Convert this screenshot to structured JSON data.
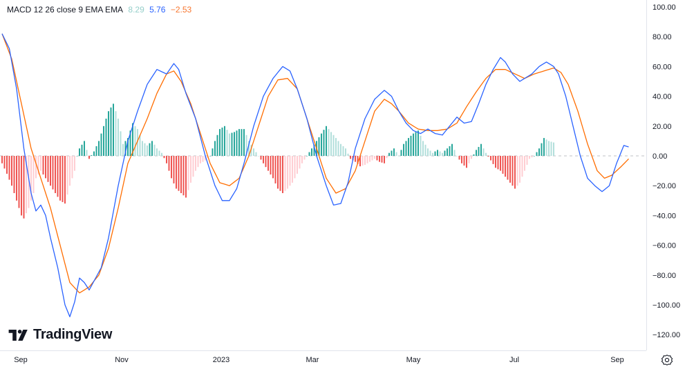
{
  "indicator": {
    "name": "MACD 12 26 close 9 EMA EMA",
    "value_hist": "8.29",
    "value_macd": "5.76",
    "value_signal": "−2.53"
  },
  "colors": {
    "macd": "#2962ff",
    "signal": "#ff6d00",
    "hist_up_strong": "#26a69a",
    "hist_up_weak": "#b2dfdb",
    "hist_down_strong": "#ef5350",
    "hist_down_weak": "#ffcdd2",
    "legend_hist": "#95cfca",
    "legend_macd": "#2962ff",
    "legend_signal": "#f7762f"
  },
  "branding": {
    "logo_text": "TradingView"
  },
  "icons": {
    "settings": "gear-icon",
    "logo": "tradingview-logo-icon"
  },
  "chart_data": {
    "type": "line",
    "y_ticks": [
      "100.00",
      "80.00",
      "60.00",
      "40.00",
      "20.00",
      "0.00",
      "−20.00",
      "−40.00",
      "−60.00",
      "−80.00",
      "−100.00",
      "−120.00"
    ],
    "x_ticks": [
      "Sep",
      "Nov",
      "2023",
      "Mar",
      "May",
      "Jul",
      "Sep"
    ],
    "ylim": [
      -128,
      102
    ],
    "macd_anchors": [
      [
        0,
        82
      ],
      [
        3,
        72
      ],
      [
        6,
        45
      ],
      [
        9,
        5
      ],
      [
        12,
        -25
      ],
      [
        14,
        -37
      ],
      [
        16,
        -33
      ],
      [
        18,
        -40
      ],
      [
        20,
        -55
      ],
      [
        23,
        -75
      ],
      [
        26,
        -100
      ],
      [
        28,
        -108
      ],
      [
        30,
        -98
      ],
      [
        32,
        -82
      ],
      [
        34,
        -85
      ],
      [
        36,
        -90
      ],
      [
        38,
        -84
      ],
      [
        41,
        -75
      ],
      [
        44,
        -55
      ],
      [
        48,
        -20
      ],
      [
        52,
        10
      ],
      [
        56,
        30
      ],
      [
        60,
        48
      ],
      [
        64,
        58
      ],
      [
        68,
        55
      ],
      [
        71,
        62
      ],
      [
        73,
        58
      ],
      [
        76,
        42
      ],
      [
        80,
        25
      ],
      [
        84,
        0
      ],
      [
        88,
        -20
      ],
      [
        91,
        -30
      ],
      [
        94,
        -30
      ],
      [
        97,
        -22
      ],
      [
        100,
        -5
      ],
      [
        104,
        20
      ],
      [
        108,
        40
      ],
      [
        112,
        52
      ],
      [
        116,
        60
      ],
      [
        119,
        57
      ],
      [
        122,
        45
      ],
      [
        126,
        25
      ],
      [
        130,
        0
      ],
      [
        134,
        -20
      ],
      [
        137,
        -33
      ],
      [
        140,
        -32
      ],
      [
        143,
        -18
      ],
      [
        146,
        5
      ],
      [
        150,
        25
      ],
      [
        154,
        38
      ],
      [
        158,
        44
      ],
      [
        161,
        40
      ],
      [
        164,
        30
      ],
      [
        167,
        22
      ],
      [
        170,
        17
      ],
      [
        173,
        15
      ],
      [
        176,
        18
      ],
      [
        179,
        15
      ],
      [
        182,
        14
      ],
      [
        185,
        20
      ],
      [
        188,
        26
      ],
      [
        191,
        22
      ],
      [
        194,
        23
      ],
      [
        197,
        35
      ],
      [
        200,
        48
      ],
      [
        203,
        58
      ],
      [
        206,
        66
      ],
      [
        208,
        63
      ],
      [
        211,
        55
      ],
      [
        214,
        50
      ],
      [
        217,
        53
      ],
      [
        219,
        55
      ],
      [
        222,
        60
      ],
      [
        225,
        63
      ],
      [
        228,
        60
      ],
      [
        230,
        55
      ],
      [
        233,
        40
      ],
      [
        236,
        20
      ],
      [
        239,
        0
      ],
      [
        242,
        -15
      ],
      [
        245,
        -20
      ],
      [
        248,
        -24
      ],
      [
        251,
        -20
      ],
      [
        254,
        -5
      ],
      [
        257,
        7
      ],
      [
        259,
        6
      ]
    ],
    "signal_anchors": [
      [
        0,
        82
      ],
      [
        4,
        65
      ],
      [
        8,
        35
      ],
      [
        12,
        5
      ],
      [
        16,
        -15
      ],
      [
        20,
        -35
      ],
      [
        24,
        -60
      ],
      [
        28,
        -85
      ],
      [
        32,
        -92
      ],
      [
        36,
        -88
      ],
      [
        40,
        -80
      ],
      [
        44,
        -62
      ],
      [
        48,
        -35
      ],
      [
        52,
        -5
      ],
      [
        56,
        10
      ],
      [
        60,
        25
      ],
      [
        64,
        42
      ],
      [
        68,
        55
      ],
      [
        71,
        57
      ],
      [
        74,
        50
      ],
      [
        78,
        35
      ],
      [
        82,
        15
      ],
      [
        86,
        -5
      ],
      [
        90,
        -18
      ],
      [
        94,
        -20
      ],
      [
        98,
        -15
      ],
      [
        102,
        0
      ],
      [
        106,
        20
      ],
      [
        110,
        40
      ],
      [
        114,
        51
      ],
      [
        118,
        52
      ],
      [
        122,
        45
      ],
      [
        126,
        25
      ],
      [
        130,
        5
      ],
      [
        134,
        -15
      ],
      [
        138,
        -25
      ],
      [
        142,
        -22
      ],
      [
        146,
        -10
      ],
      [
        150,
        10
      ],
      [
        154,
        30
      ],
      [
        158,
        38
      ],
      [
        161,
        35
      ],
      [
        164,
        30
      ],
      [
        168,
        22
      ],
      [
        172,
        18
      ],
      [
        176,
        17
      ],
      [
        180,
        17
      ],
      [
        184,
        18
      ],
      [
        188,
        22
      ],
      [
        192,
        33
      ],
      [
        196,
        43
      ],
      [
        200,
        52
      ],
      [
        204,
        58
      ],
      [
        208,
        58
      ],
      [
        212,
        55
      ],
      [
        216,
        52
      ],
      [
        220,
        55
      ],
      [
        224,
        57
      ],
      [
        228,
        59
      ],
      [
        231,
        56
      ],
      [
        234,
        48
      ],
      [
        238,
        30
      ],
      [
        242,
        8
      ],
      [
        246,
        -10
      ],
      [
        249,
        -15
      ],
      [
        252,
        -13
      ],
      [
        256,
        -7
      ],
      [
        259,
        -2
      ]
    ],
    "histogram_anchors": [
      [
        0,
        -5
      ],
      [
        2,
        -12
      ],
      [
        4,
        -20
      ],
      [
        6,
        -30
      ],
      [
        8,
        -40
      ],
      [
        9,
        -42
      ],
      [
        11,
        -35
      ],
      [
        13,
        -25
      ],
      [
        14,
        -15
      ],
      [
        16,
        -10
      ],
      [
        18,
        -15
      ],
      [
        20,
        -20
      ],
      [
        22,
        -25
      ],
      [
        24,
        -30
      ],
      [
        26,
        -32
      ],
      [
        28,
        -20
      ],
      [
        30,
        -10
      ],
      [
        31,
        0
      ],
      [
        32,
        5
      ],
      [
        34,
        10
      ],
      [
        36,
        -2
      ],
      [
        38,
        3
      ],
      [
        40,
        10
      ],
      [
        42,
        20
      ],
      [
        44,
        30
      ],
      [
        46,
        35
      ],
      [
        48,
        25
      ],
      [
        50,
        8
      ],
      [
        52,
        12
      ],
      [
        54,
        22
      ],
      [
        56,
        18
      ],
      [
        58,
        10
      ],
      [
        60,
        7
      ],
      [
        62,
        10
      ],
      [
        64,
        5
      ],
      [
        66,
        2
      ],
      [
        68,
        -5
      ],
      [
        70,
        -15
      ],
      [
        72,
        -22
      ],
      [
        74,
        -25
      ],
      [
        76,
        -28
      ],
      [
        78,
        -18
      ],
      [
        80,
        -10
      ],
      [
        82,
        -5
      ],
      [
        84,
        -3
      ],
      [
        86,
        0
      ],
      [
        88,
        10
      ],
      [
        90,
        18
      ],
      [
        92,
        20
      ],
      [
        94,
        15
      ],
      [
        96,
        16
      ],
      [
        98,
        18
      ],
      [
        100,
        18
      ],
      [
        102,
        10
      ],
      [
        104,
        5
      ],
      [
        106,
        0
      ],
      [
        108,
        -5
      ],
      [
        110,
        -10
      ],
      [
        112,
        -15
      ],
      [
        114,
        -22
      ],
      [
        116,
        -25
      ],
      [
        118,
        -22
      ],
      [
        120,
        -18
      ],
      [
        122,
        -12
      ],
      [
        124,
        -5
      ],
      [
        126,
        0
      ],
      [
        128,
        5
      ],
      [
        130,
        10
      ],
      [
        132,
        15
      ],
      [
        134,
        20
      ],
      [
        136,
        16
      ],
      [
        138,
        12
      ],
      [
        140,
        8
      ],
      [
        142,
        5
      ],
      [
        144,
        -2
      ],
      [
        146,
        -4
      ],
      [
        148,
        -7
      ],
      [
        150,
        -6
      ],
      [
        152,
        -4
      ],
      [
        154,
        -2
      ],
      [
        156,
        -4
      ],
      [
        158,
        -5
      ],
      [
        160,
        2
      ],
      [
        162,
        5
      ],
      [
        164,
        0
      ],
      [
        166,
        8
      ],
      [
        168,
        12
      ],
      [
        170,
        15
      ],
      [
        172,
        17
      ],
      [
        174,
        10
      ],
      [
        176,
        5
      ],
      [
        178,
        2
      ],
      [
        180,
        4
      ],
      [
        182,
        2
      ],
      [
        184,
        5
      ],
      [
        186,
        8
      ],
      [
        188,
        0
      ],
      [
        190,
        -5
      ],
      [
        192,
        -8
      ],
      [
        194,
        -2
      ],
      [
        196,
        4
      ],
      [
        198,
        8
      ],
      [
        200,
        2
      ],
      [
        202,
        -3
      ],
      [
        204,
        -8
      ],
      [
        206,
        -10
      ],
      [
        208,
        -14
      ],
      [
        210,
        -18
      ],
      [
        212,
        -22
      ],
      [
        214,
        -18
      ],
      [
        216,
        -10
      ],
      [
        218,
        -2
      ],
      [
        220,
        0
      ],
      [
        222,
        5
      ],
      [
        224,
        12
      ],
      [
        226,
        10
      ],
      [
        228,
        9
      ]
    ]
  }
}
